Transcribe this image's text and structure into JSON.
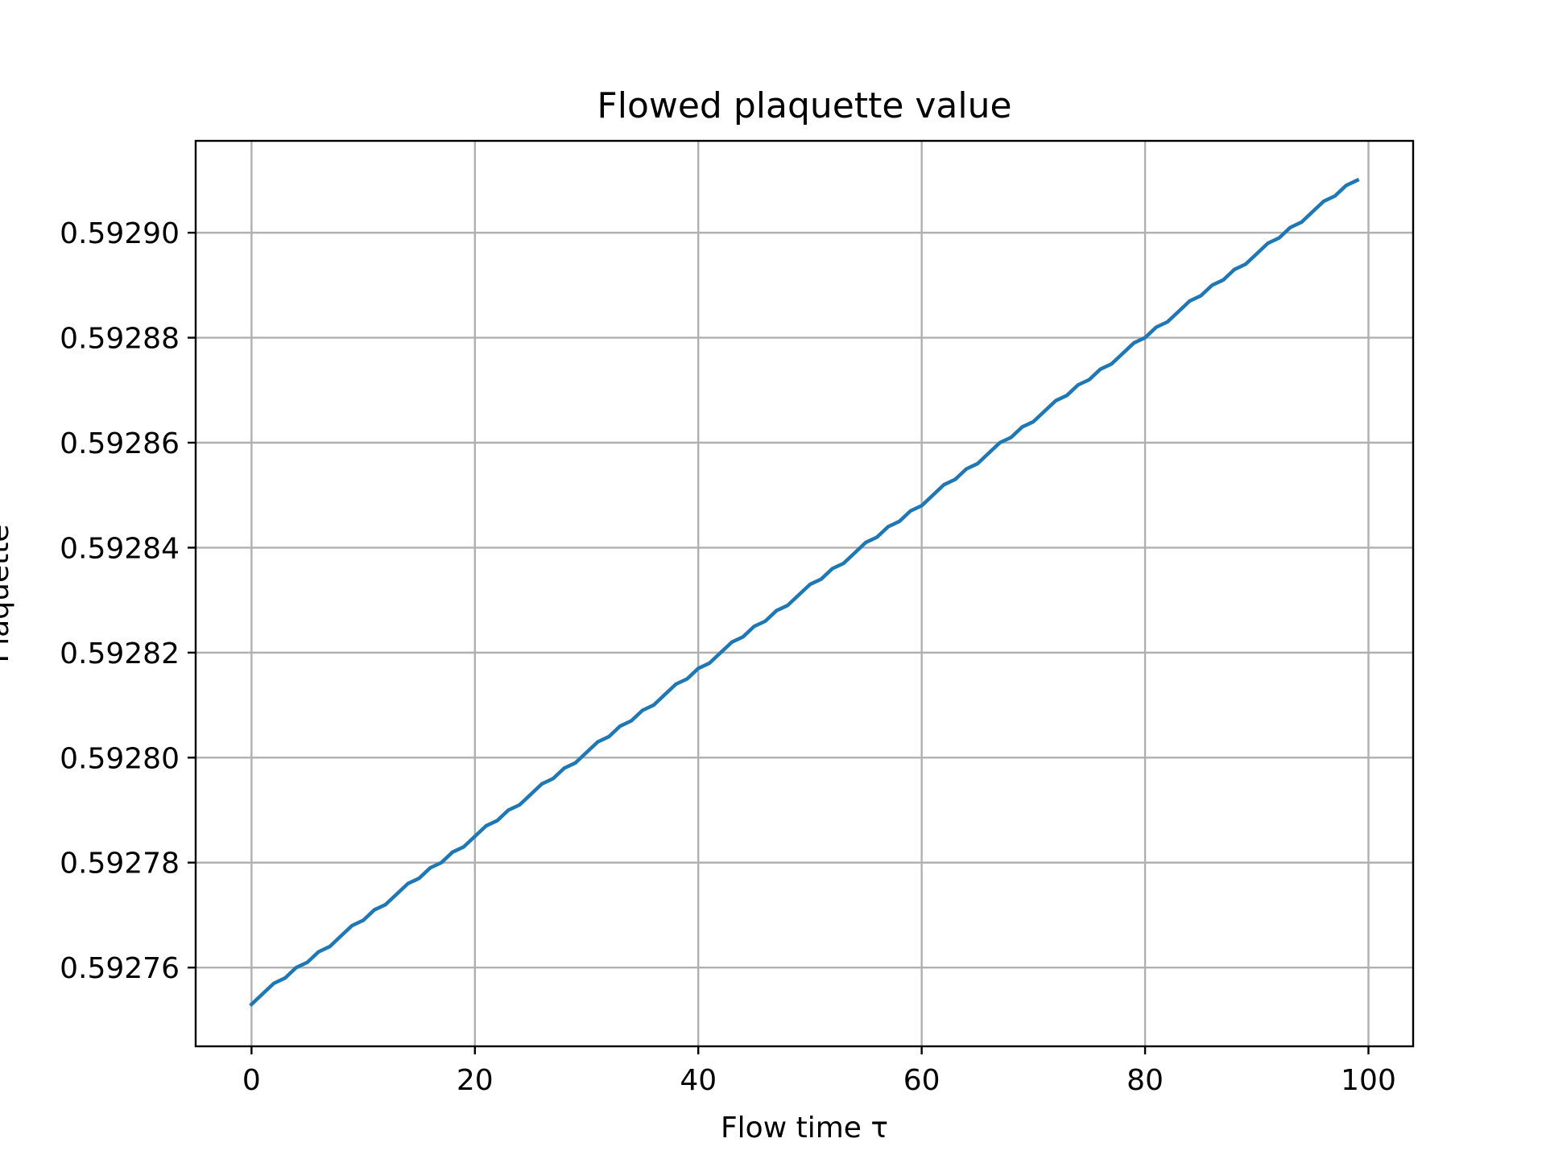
{
  "chart_data": {
    "type": "line",
    "title": "Flowed plaquette value",
    "xlabel": "Flow time τ",
    "ylabel": "Plaquette",
    "xlim": [
      -5,
      104
    ],
    "ylim": [
      0.592745,
      0.5929175
    ],
    "xticks": [
      0,
      20,
      40,
      60,
      80,
      100
    ],
    "xtick_labels": [
      "0",
      "20",
      "40",
      "60",
      "80",
      "100"
    ],
    "yticks": [
      0.59276,
      0.59278,
      0.5928,
      0.59282,
      0.59284,
      0.59286,
      0.59288,
      0.5929
    ],
    "ytick_labels": [
      "0.59276",
      "0.59278",
      "0.59280",
      "0.59282",
      "0.59284",
      "0.59286",
      "0.59288",
      "0.59290"
    ],
    "grid": true,
    "series": [
      {
        "color": "#1f77b4",
        "x": [
          0,
          1,
          2,
          3,
          4,
          5,
          6,
          7,
          8,
          9,
          10,
          11,
          12,
          13,
          14,
          15,
          16,
          17,
          18,
          19,
          20,
          21,
          22,
          23,
          24,
          25,
          26,
          27,
          28,
          29,
          30,
          31,
          32,
          33,
          34,
          35,
          36,
          37,
          38,
          39,
          40,
          41,
          42,
          43,
          44,
          45,
          46,
          47,
          48,
          49,
          50,
          51,
          52,
          53,
          54,
          55,
          56,
          57,
          58,
          59,
          60,
          61,
          62,
          63,
          64,
          65,
          66,
          67,
          68,
          69,
          70,
          71,
          72,
          73,
          74,
          75,
          76,
          77,
          78,
          79,
          80,
          81,
          82,
          83,
          84,
          85,
          86,
          87,
          88,
          89,
          90,
          91,
          92,
          93,
          94,
          95,
          96,
          97,
          98,
          99
        ],
        "y": [
          0.592753,
          0.592755,
          0.592757,
          0.592758,
          0.59276,
          0.592761,
          0.592763,
          0.592764,
          0.592766,
          0.592768,
          0.592769,
          0.592771,
          0.592772,
          0.592774,
          0.592776,
          0.592777,
          0.592779,
          0.59278,
          0.592782,
          0.592783,
          0.592785,
          0.592787,
          0.592788,
          0.59279,
          0.592791,
          0.592793,
          0.592795,
          0.592796,
          0.592798,
          0.592799,
          0.592801,
          0.592803,
          0.592804,
          0.592806,
          0.592807,
          0.592809,
          0.59281,
          0.592812,
          0.592814,
          0.592815,
          0.592817,
          0.592818,
          0.59282,
          0.592822,
          0.592823,
          0.592825,
          0.592826,
          0.592828,
          0.592829,
          0.592831,
          0.592833,
          0.592834,
          0.592836,
          0.592837,
          0.592839,
          0.592841,
          0.592842,
          0.592844,
          0.592845,
          0.592847,
          0.592848,
          0.59285,
          0.592852,
          0.592853,
          0.592855,
          0.592856,
          0.592858,
          0.59286,
          0.592861,
          0.592863,
          0.592864,
          0.592866,
          0.592868,
          0.592869,
          0.592871,
          0.592872,
          0.592874,
          0.592875,
          0.592877,
          0.592879,
          0.59288,
          0.592882,
          0.592883,
          0.592885,
          0.592887,
          0.592888,
          0.59289,
          0.592891,
          0.592893,
          0.592894,
          0.592896,
          0.592898,
          0.592899,
          0.592901,
          0.592902,
          0.592904,
          0.592906,
          0.592907,
          0.592909,
          0.59291
        ]
      }
    ]
  }
}
